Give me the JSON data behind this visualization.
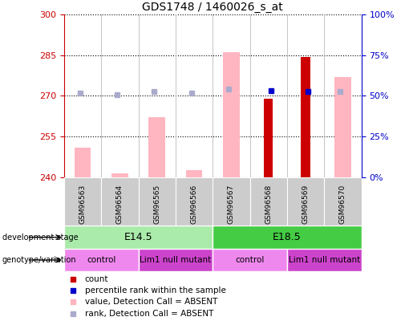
{
  "title": "GDS1748 / 1460026_s_at",
  "samples": [
    "GSM96563",
    "GSM96564",
    "GSM96565",
    "GSM96566",
    "GSM96567",
    "GSM96568",
    "GSM96569",
    "GSM96570"
  ],
  "ylim": [
    240,
    300
  ],
  "ylim_right": [
    0,
    100
  ],
  "yticks_left": [
    240,
    255,
    270,
    285,
    300
  ],
  "yticks_right": [
    0,
    25,
    50,
    75,
    100
  ],
  "value_absent": [
    251.0,
    241.5,
    262.0,
    242.5,
    286.0,
    null,
    null,
    277.0
  ],
  "count_present": [
    null,
    null,
    null,
    null,
    null,
    269.0,
    284.5,
    null
  ],
  "rank_absent": [
    271.0,
    270.5,
    271.5,
    271.0,
    272.5,
    null,
    null,
    271.5
  ],
  "percentile_present": [
    null,
    null,
    null,
    null,
    null,
    272.0,
    271.5,
    null
  ],
  "bar_color_absent": "#ffb6c1",
  "bar_color_present_count": "#cc0000",
  "dot_color_rank_absent": "#aaaacc",
  "dot_color_percentile_present": "#0000cc",
  "background_color": "#ffffff",
  "plot_bg": "#ffffff",
  "left_tick_color": "#cc0000",
  "right_tick_color": "#0000cc",
  "development_stage_labels": [
    {
      "label": "E14.5",
      "start": 0,
      "end": 3,
      "color": "#aaeaaa"
    },
    {
      "label": "E18.5",
      "start": 4,
      "end": 7,
      "color": "#44cc44"
    }
  ],
  "genotype_labels": [
    {
      "label": "control",
      "start": 0,
      "end": 1,
      "color": "#ee88ee"
    },
    {
      "label": "Lim1 null mutant",
      "start": 2,
      "end": 3,
      "color": "#cc44cc"
    },
    {
      "label": "control",
      "start": 4,
      "end": 5,
      "color": "#ee88ee"
    },
    {
      "label": "Lim1 null mutant",
      "start": 6,
      "end": 7,
      "color": "#cc44cc"
    }
  ],
  "legend_items": [
    {
      "label": "count",
      "color": "#cc0000"
    },
    {
      "label": "percentile rank within the sample",
      "color": "#0000cc"
    },
    {
      "label": "value, Detection Call = ABSENT",
      "color": "#ffb6c1"
    },
    {
      "label": "rank, Detection Call = ABSENT",
      "color": "#aaaacc"
    }
  ]
}
